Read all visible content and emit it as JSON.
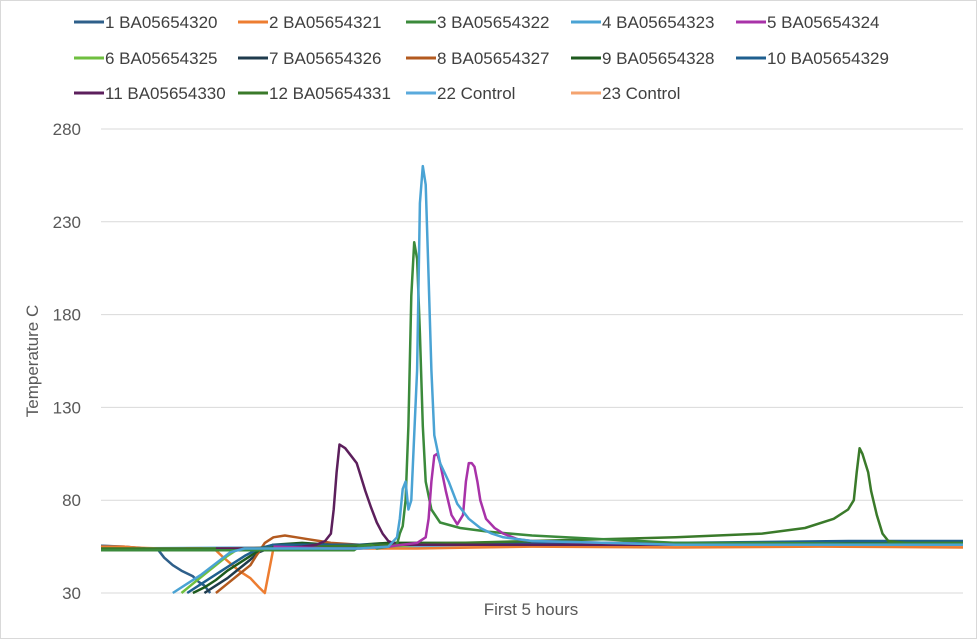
{
  "chart_data": {
    "type": "line",
    "xlabel": "First 5 hours",
    "ylabel": "Temperature C",
    "ylim": [
      30,
      280
    ],
    "yticks": [
      30,
      80,
      130,
      180,
      230,
      280
    ],
    "xlim": [
      0,
      300
    ],
    "grid": "horizontal",
    "legend_position": "top",
    "series": [
      {
        "name": "1 BA05654320",
        "color": "#2e5f8a",
        "points": [
          [
            0,
            55.5
          ],
          [
            8,
            55
          ],
          [
            15,
            54
          ],
          [
            20,
            53
          ],
          [
            22,
            49
          ],
          [
            25,
            45
          ],
          [
            28,
            42
          ],
          [
            32,
            39
          ],
          [
            34,
            36
          ],
          [
            36,
            34
          ],
          [
            38,
            30
          ]
        ]
      },
      {
        "name": "2 BA05654321",
        "color": "#ed7d31",
        "points": [
          [
            0,
            55
          ],
          [
            8,
            55
          ],
          [
            15,
            54
          ],
          [
            20,
            53.5
          ],
          [
            25,
            53.5
          ],
          [
            30,
            54
          ],
          [
            35,
            54
          ],
          [
            40,
            53
          ],
          [
            42,
            50
          ],
          [
            45,
            46
          ],
          [
            48,
            42
          ],
          [
            52,
            38
          ],
          [
            55,
            33
          ],
          [
            57,
            30
          ],
          [
            60,
            54
          ],
          [
            75,
            54
          ],
          [
            90,
            54
          ],
          [
            110,
            54
          ],
          [
            130,
            54.5
          ],
          [
            150,
            55
          ],
          [
            200,
            54.5
          ],
          [
            250,
            55
          ],
          [
            300,
            54.5
          ]
        ]
      },
      {
        "name": "3 BA05654322",
        "color": "#3b8a3b",
        "points": [
          [
            0,
            53
          ],
          [
            40,
            53
          ],
          [
            80,
            53
          ],
          [
            88,
            53
          ],
          [
            90,
            55
          ],
          [
            94,
            56
          ],
          [
            96,
            54
          ],
          [
            100,
            55
          ],
          [
            103,
            56
          ],
          [
            104,
            62
          ],
          [
            105,
            66
          ],
          [
            106,
            80
          ],
          [
            107,
            120
          ],
          [
            108,
            190
          ],
          [
            109,
            219
          ],
          [
            110,
            210
          ],
          [
            111,
            170
          ],
          [
            112,
            120
          ],
          [
            113,
            90
          ],
          [
            115,
            75
          ],
          [
            118,
            68
          ],
          [
            125,
            65
          ],
          [
            135,
            63
          ],
          [
            150,
            61
          ],
          [
            175,
            59
          ],
          [
            200,
            57
          ],
          [
            230,
            57
          ],
          [
            260,
            56.5
          ],
          [
            300,
            56.5
          ]
        ]
      },
      {
        "name": "4 BA05654323",
        "color": "#4aa3d4",
        "points": [
          [
            25,
            30
          ],
          [
            30,
            35
          ],
          [
            35,
            40
          ],
          [
            40,
            46
          ],
          [
            45,
            52
          ],
          [
            50,
            54
          ],
          [
            60,
            54
          ],
          [
            70,
            54
          ],
          [
            80,
            54
          ],
          [
            90,
            54
          ],
          [
            100,
            55
          ],
          [
            103,
            60
          ],
          [
            104,
            70
          ],
          [
            105,
            86
          ],
          [
            106,
            90
          ],
          [
            107,
            75
          ],
          [
            108,
            80
          ],
          [
            110,
            150
          ],
          [
            111,
            240
          ],
          [
            112,
            260
          ],
          [
            113,
            250
          ],
          [
            114,
            200
          ],
          [
            115,
            150
          ],
          [
            116,
            115
          ],
          [
            118,
            100
          ],
          [
            121,
            90
          ],
          [
            124,
            78
          ],
          [
            128,
            70
          ],
          [
            132,
            65
          ],
          [
            136,
            62
          ],
          [
            140,
            60
          ],
          [
            150,
            58
          ],
          [
            200,
            56
          ],
          [
            300,
            56
          ]
        ]
      },
      {
        "name": "5 BA05654324",
        "color": "#a832a8",
        "points": [
          [
            60,
            55
          ],
          [
            80,
            54
          ],
          [
            90,
            54
          ],
          [
            100,
            55
          ],
          [
            110,
            57
          ],
          [
            113,
            60
          ],
          [
            114,
            70
          ],
          [
            115,
            90
          ],
          [
            116,
            104
          ],
          [
            117,
            105
          ],
          [
            118,
            100
          ],
          [
            120,
            85
          ],
          [
            122,
            72
          ],
          [
            124,
            67
          ],
          [
            126,
            72
          ],
          [
            127,
            90
          ],
          [
            128,
            100
          ],
          [
            129,
            100
          ],
          [
            130,
            98
          ],
          [
            131,
            90
          ],
          [
            132,
            80
          ],
          [
            134,
            70
          ],
          [
            137,
            65
          ],
          [
            140,
            62
          ],
          [
            145,
            59
          ],
          [
            150,
            58
          ],
          [
            200,
            56
          ],
          [
            300,
            56
          ]
        ]
      },
      {
        "name": "6 BA05654325",
        "color": "#6fbf3f",
        "points": [
          [
            28,
            30
          ],
          [
            32,
            35
          ],
          [
            36,
            40
          ],
          [
            40,
            45
          ],
          [
            44,
            50
          ],
          [
            48,
            54
          ],
          [
            60,
            54
          ],
          [
            80,
            54
          ],
          [
            100,
            55
          ],
          [
            110,
            56
          ],
          [
            300,
            56
          ]
        ]
      },
      {
        "name": "7 BA05654326",
        "color": "#1f3b4d",
        "points": [
          [
            36,
            30
          ],
          [
            40,
            34
          ],
          [
            44,
            38
          ],
          [
            48,
            43
          ],
          [
            52,
            48
          ],
          [
            55,
            52
          ],
          [
            60,
            55
          ],
          [
            70,
            56
          ],
          [
            80,
            55
          ],
          [
            90,
            55
          ],
          [
            100,
            56
          ],
          [
            110,
            56
          ],
          [
            300,
            56
          ]
        ]
      },
      {
        "name": "8 BA05654327",
        "color": "#b35a1f",
        "points": [
          [
            40,
            30
          ],
          [
            44,
            35
          ],
          [
            48,
            40
          ],
          [
            52,
            45
          ],
          [
            54,
            50
          ],
          [
            57,
            57
          ],
          [
            60,
            60
          ],
          [
            64,
            61
          ],
          [
            68,
            60
          ],
          [
            72,
            59
          ],
          [
            76,
            58
          ],
          [
            80,
            57
          ],
          [
            90,
            56
          ],
          [
            100,
            56
          ],
          [
            110,
            56
          ],
          [
            300,
            56
          ]
        ]
      },
      {
        "name": "9 BA05654328",
        "color": "#1e5a1e",
        "points": [
          [
            32,
            30
          ],
          [
            36,
            33
          ],
          [
            40,
            37
          ],
          [
            44,
            42
          ],
          [
            48,
            46
          ],
          [
            52,
            50
          ],
          [
            56,
            54
          ],
          [
            60,
            56
          ],
          [
            70,
            57
          ],
          [
            80,
            56
          ],
          [
            90,
            56
          ],
          [
            100,
            57
          ],
          [
            110,
            57
          ],
          [
            300,
            57
          ]
        ]
      },
      {
        "name": "10 BA05654329",
        "color": "#1f5f8f",
        "points": [
          [
            30,
            30
          ],
          [
            35,
            35
          ],
          [
            40,
            40
          ],
          [
            45,
            45
          ],
          [
            50,
            50
          ],
          [
            55,
            54
          ],
          [
            60,
            56
          ],
          [
            80,
            56
          ],
          [
            100,
            56
          ],
          [
            200,
            57
          ],
          [
            260,
            58
          ],
          [
            300,
            58
          ]
        ]
      },
      {
        "name": "11 BA05654330",
        "color": "#5c1f5c",
        "points": [
          [
            40,
            54
          ],
          [
            60,
            54
          ],
          [
            70,
            55
          ],
          [
            75,
            56
          ],
          [
            78,
            58
          ],
          [
            80,
            62
          ],
          [
            81,
            75
          ],
          [
            82,
            95
          ],
          [
            83,
            110
          ],
          [
            85,
            108
          ],
          [
            87,
            104
          ],
          [
            89,
            100
          ],
          [
            90,
            95
          ],
          [
            92,
            85
          ],
          [
            94,
            76
          ],
          [
            96,
            68
          ],
          [
            98,
            62
          ],
          [
            100,
            58
          ],
          [
            103,
            56
          ],
          [
            110,
            56
          ],
          [
            150,
            56
          ],
          [
            300,
            56
          ]
        ]
      },
      {
        "name": "12 BA05654331",
        "color": "#3a7a2a",
        "points": [
          [
            0,
            54
          ],
          [
            50,
            54
          ],
          [
            100,
            56
          ],
          [
            150,
            58
          ],
          [
            200,
            60
          ],
          [
            230,
            62
          ],
          [
            245,
            65
          ],
          [
            255,
            70
          ],
          [
            260,
            75
          ],
          [
            262,
            80
          ],
          [
            263,
            95
          ],
          [
            264,
            108
          ],
          [
            265,
            105
          ],
          [
            266,
            100
          ],
          [
            267,
            95
          ],
          [
            268,
            85
          ],
          [
            270,
            72
          ],
          [
            272,
            62
          ],
          [
            274,
            58
          ],
          [
            280,
            57
          ],
          [
            300,
            57
          ]
        ]
      },
      {
        "name": "22 Control",
        "color": "#5aaadc",
        "points": [
          [
            0,
            54
          ],
          [
            100,
            55
          ],
          [
            200,
            56
          ],
          [
            300,
            56
          ]
        ]
      },
      {
        "name": "23 Control",
        "color": "#f4a36f",
        "points": [
          [
            0,
            55.5
          ],
          [
            20,
            54
          ],
          [
            40,
            54
          ],
          [
            60,
            54.5
          ],
          [
            80,
            55
          ],
          [
            100,
            55
          ],
          [
            110,
            56
          ],
          [
            150,
            55.5
          ],
          [
            200,
            55.5
          ],
          [
            250,
            55.5
          ],
          [
            300,
            55.5
          ]
        ]
      }
    ]
  }
}
